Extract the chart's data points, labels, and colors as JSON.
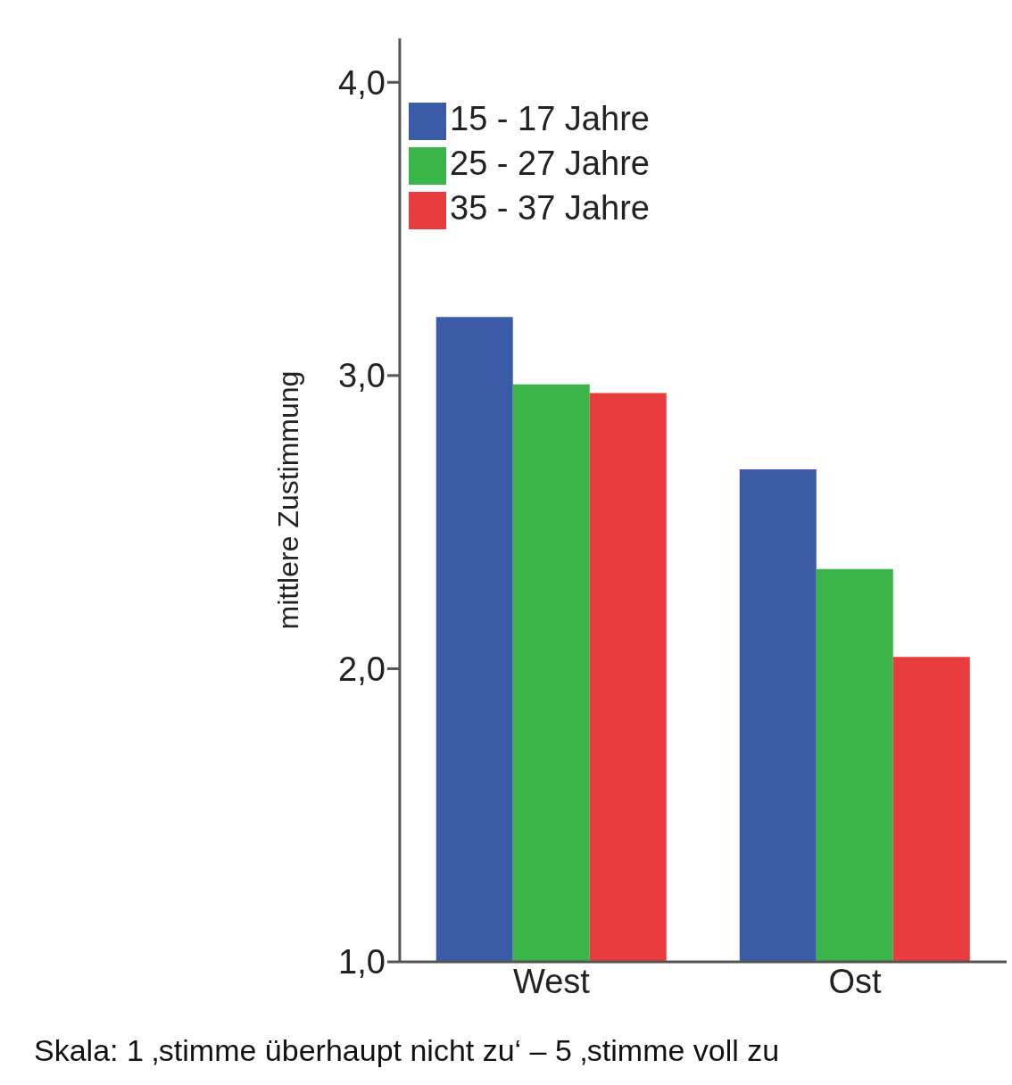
{
  "chart_data": {
    "type": "bar",
    "categories": [
      "West",
      "Ost"
    ],
    "series": [
      {
        "name": "15 - 17 Jahre",
        "color": "#3b5ba9",
        "values": [
          3.2,
          2.68
        ]
      },
      {
        "name": "25 - 27 Jahre",
        "color": "#3ab54a",
        "values": [
          2.97,
          2.34
        ]
      },
      {
        "name": "35 - 37 Jahre",
        "color": "#e83c3f",
        "values": [
          2.94,
          2.04
        ]
      }
    ],
    "ylabel": "mittlere Zustimmung",
    "ylim": [
      1,
      4.15
    ],
    "yticks": [
      {
        "value": 1,
        "label": "1,0"
      },
      {
        "value": 2,
        "label": "2,0"
      },
      {
        "value": 3,
        "label": "3,0"
      },
      {
        "value": 4,
        "label": "4,0"
      }
    ],
    "grid": false,
    "legend": "top",
    "annotations": [
      "Skala: 1 ‚stimme überhaupt nicht zu‘ – 5 ‚stimme voll zu"
    ]
  }
}
